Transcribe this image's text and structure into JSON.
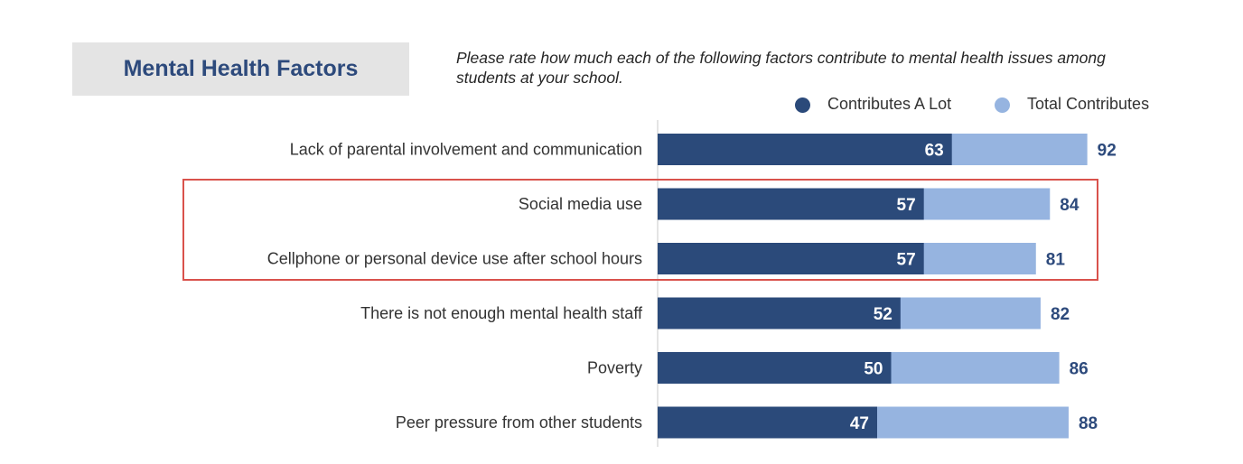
{
  "header": {
    "title": "Mental Health Factors",
    "question": "Please rate how much each of the following factors contribute to mental health issues among students at your school."
  },
  "colors": {
    "contributes_a_lot": "#2b4a7a",
    "total_contributes": "#96b4e0",
    "title_text": "#2d4a7c",
    "highlight_box": "#d9524c"
  },
  "chart_data": {
    "type": "bar",
    "orientation": "horizontal",
    "title": "Mental Health Factors",
    "subtitle": "Please rate how much each of the following factors contribute to mental health issues among students at your school.",
    "xlim": [
      0,
      100
    ],
    "grid": false,
    "legend_position": "top-right",
    "legend": [
      "Contributes A Lot",
      "Total Contributes"
    ],
    "categories": [
      "Lack of parental involvement and communication",
      "Social media use",
      "Cellphone or personal device use after school hours",
      "There is not enough mental health staff",
      "Poverty",
      "Peer pressure from other students"
    ],
    "series": [
      {
        "name": "Contributes A Lot",
        "values": [
          63,
          57,
          57,
          52,
          50,
          47
        ]
      },
      {
        "name": "Total Contributes",
        "values": [
          92,
          84,
          81,
          82,
          86,
          88
        ]
      }
    ],
    "highlighted_categories": [
      "Social media use",
      "Cellphone or personal device use after school hours"
    ]
  }
}
